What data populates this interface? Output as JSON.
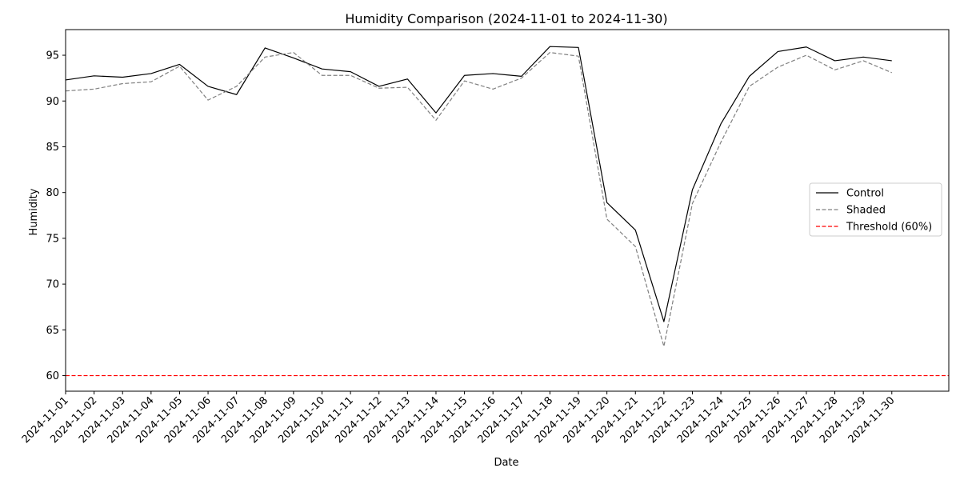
{
  "chart_data": {
    "type": "line",
    "title": "Humidity Comparison (2024-11-01 to 2024-11-30)",
    "xlabel": "Date",
    "ylabel": "Humidity",
    "x": [
      "2024-11-01",
      "2024-11-02",
      "2024-11-03",
      "2024-11-04",
      "2024-11-05",
      "2024-11-06",
      "2024-11-07",
      "2024-11-08",
      "2024-11-09",
      "2024-11-10",
      "2024-11-11",
      "2024-11-12",
      "2024-11-13",
      "2024-11-14",
      "2024-11-15",
      "2024-11-16",
      "2024-11-17",
      "2024-11-18",
      "2024-11-19",
      "2024-11-20",
      "2024-11-21",
      "2024-11-22",
      "2024-11-23",
      "2024-11-24",
      "2024-11-25",
      "2024-11-26",
      "2024-11-27",
      "2024-11-28",
      "2024-11-29",
      "2024-11-30"
    ],
    "xlim": [
      "2024-11-01",
      "2024-12-02"
    ],
    "ylim": [
      58.3,
      97.8
    ],
    "yticks": [
      60,
      65,
      70,
      75,
      80,
      85,
      90,
      95
    ],
    "grid": false,
    "legend_position": "center-right",
    "series": [
      {
        "name": "Control",
        "color": "#000000",
        "style": "solid",
        "values": [
          92.3,
          92.75,
          92.6,
          93.0,
          94.0,
          91.6,
          90.7,
          95.8,
          94.7,
          93.5,
          93.2,
          91.6,
          92.4,
          88.7,
          92.8,
          93.0,
          92.7,
          95.95,
          95.85,
          78.9,
          75.9,
          65.9,
          80.3,
          87.5,
          92.7,
          95.4,
          95.9,
          94.4,
          94.8,
          94.4
        ]
      },
      {
        "name": "Shaded",
        "color": "#808080",
        "style": "dashed",
        "values": [
          91.1,
          91.3,
          91.9,
          92.1,
          93.8,
          90.1,
          91.6,
          94.8,
          95.3,
          92.8,
          92.8,
          91.4,
          91.5,
          87.9,
          92.2,
          91.3,
          92.5,
          95.3,
          94.9,
          77.1,
          74.1,
          63.2,
          78.8,
          85.5,
          91.6,
          93.7,
          95.0,
          93.4,
          94.4,
          93.1
        ]
      }
    ],
    "threshold": {
      "name": "Threshold (60%)",
      "value": 60,
      "color": "#ff0000",
      "style": "dashed"
    }
  }
}
